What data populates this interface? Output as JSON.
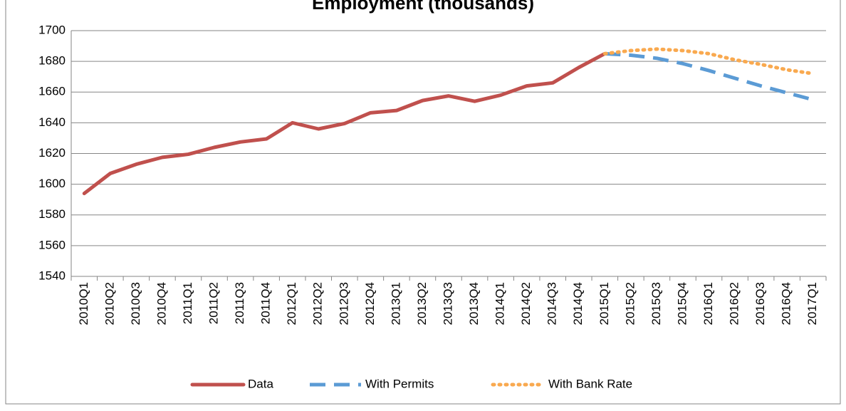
{
  "chart_data": {
    "type": "line",
    "title": "Employment (thousands)",
    "categories": [
      "2010Q1",
      "2010Q2",
      "2010Q3",
      "2010Q4",
      "2011Q1",
      "2011Q2",
      "2011Q3",
      "2011Q4",
      "2012Q1",
      "2012Q2",
      "2012Q3",
      "2012Q4",
      "2013Q1",
      "2013Q2",
      "2013Q3",
      "2013Q4",
      "2014Q1",
      "2014Q2",
      "2014Q3",
      "2014Q4",
      "2015Q1",
      "2015Q2",
      "2015Q3",
      "2015Q4",
      "2016Q1",
      "2016Q2",
      "2016Q3",
      "2016Q4",
      "2017Q1"
    ],
    "series": [
      {
        "name": "Data",
        "color": "#c0504d",
        "dash": "solid",
        "values": [
          1594,
          1607,
          1613,
          1617.5,
          1619.5,
          1624,
          1627.5,
          1629.5,
          1640,
          1636,
          1639.5,
          1646.5,
          1648,
          1654.5,
          1657.5,
          1654,
          1658,
          1664,
          1666,
          1676,
          1685,
          null,
          null,
          null,
          null,
          null,
          null,
          null,
          null
        ]
      },
      {
        "name": "With Permits",
        "color": "#5b9bd5",
        "dash": "dashed",
        "values": [
          null,
          null,
          null,
          null,
          null,
          null,
          null,
          null,
          null,
          null,
          null,
          null,
          null,
          null,
          null,
          null,
          null,
          null,
          null,
          null,
          1685,
          1684,
          1682,
          1678.5,
          1674,
          1669,
          1664,
          1659.5,
          1655
        ]
      },
      {
        "name": "With Bank Rate",
        "color": "#f9a94f",
        "dash": "dotted",
        "values": [
          null,
          null,
          null,
          null,
          null,
          null,
          null,
          null,
          null,
          null,
          null,
          null,
          null,
          null,
          null,
          null,
          null,
          null,
          null,
          null,
          1685,
          1687,
          1688,
          1687,
          1685,
          1681,
          1678,
          1674.5,
          1672
        ]
      }
    ],
    "ylim": [
      1540,
      1700
    ],
    "yticks": [
      1540,
      1560,
      1580,
      1600,
      1620,
      1640,
      1660,
      1680,
      1700
    ],
    "grid": true,
    "legend": "bottom"
  }
}
